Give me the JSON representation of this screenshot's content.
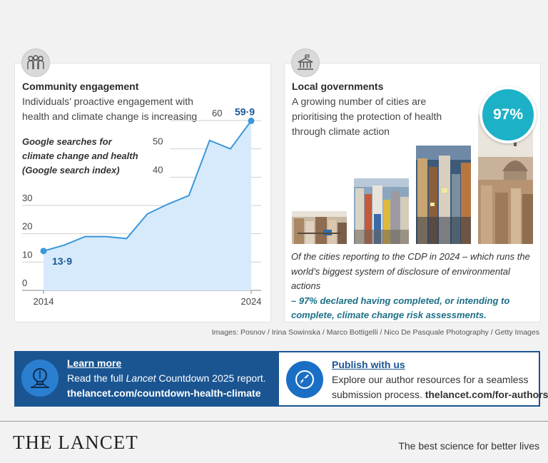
{
  "left_panel": {
    "icon": "community-people-icon",
    "title": "Community engagement",
    "subtitle_line1": "Individuals’ proactive engagement with",
    "subtitle_line2": "health and climate change is increasing",
    "ylabel_line1": "Google searches for",
    "ylabel_line2": "climate change and health",
    "ylabel_line3": "(Google search index)"
  },
  "chart_data": {
    "type": "area",
    "x": [
      2014,
      2015,
      2016,
      2017,
      2018,
      2019,
      2020,
      2021,
      2022,
      2023,
      2024
    ],
    "values": [
      13.9,
      16,
      19,
      19,
      18.3,
      27,
      30.5,
      33.5,
      53,
      50,
      59.9
    ],
    "first_label": "13·9",
    "last_label": "59·9",
    "x_tick_labels": [
      "2014",
      "2024"
    ],
    "y_ticks": [
      0,
      10,
      20,
      30,
      40,
      50,
      60
    ],
    "y_tick_labels": [
      "0",
      "10",
      "20",
      "30",
      "40",
      "50",
      "60"
    ],
    "ylim": [
      0,
      60
    ],
    "colors": {
      "line": "#3a97d9",
      "fill": "#d6eafb",
      "label": "#1a5592"
    }
  },
  "right_panel": {
    "icon": "government-building-icon",
    "title": "Local governments",
    "subtitle_line1": "A growing number of cities are",
    "subtitle_line2": "prioritising the protection of health",
    "subtitle_line3": "through climate action",
    "percent": "97%",
    "caption_line1": "Of the cities reporting to the CDP in 2024 – which runs the",
    "caption_line2": "world’s biggest system of disclosure of environmental actions",
    "caption_line3": "– 97% declared having completed, or intending to",
    "caption_line4": "complete, climate change risk assessments."
  },
  "credits": "Images: Posnov / Irina Sowinska / Marco Bottigelli / Nico De Pasquale Photography / Getty Images",
  "learn_more": {
    "title": "Learn more",
    "line1_prefix": "Read the full ",
    "line1_italic": "Lancet",
    "line1_suffix": " Countdown 2025 report.",
    "line2": "thelancet.com/countdown-health-climate"
  },
  "publish": {
    "title": "Publish with us",
    "line1": "Explore our author resources for a seamless",
    "line2_prefix": "submission process. ",
    "line2_link": "thelancet.com/for-authors"
  },
  "brand": {
    "logo": "THE LANCET",
    "tagline": "The best science for better lives"
  }
}
